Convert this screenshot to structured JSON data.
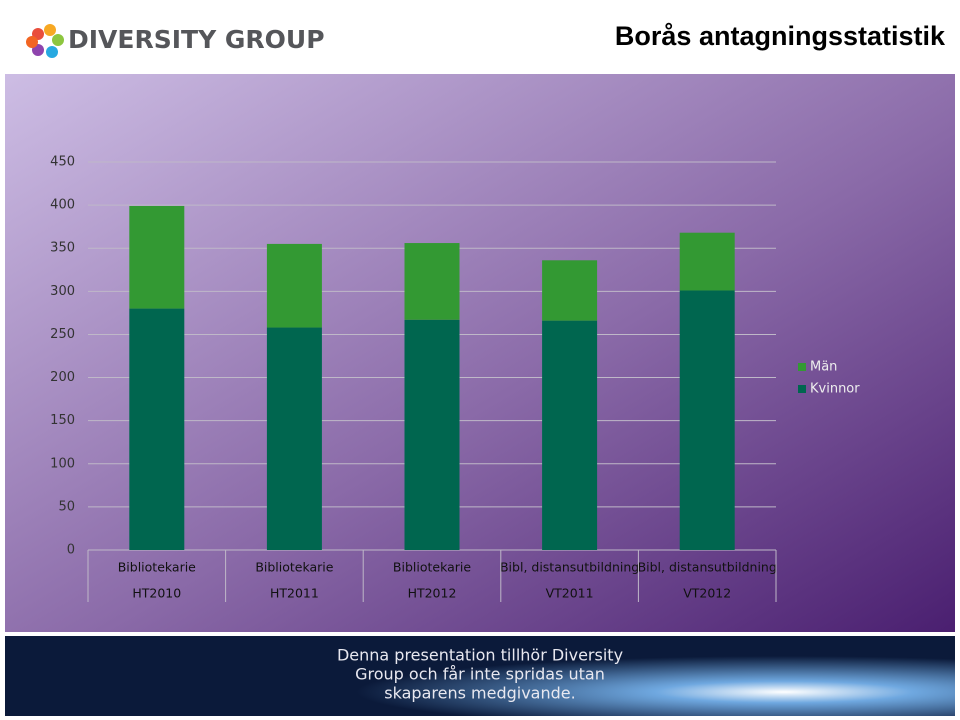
{
  "logo": "DIVERSITY GROUP",
  "footer": [
    "Denna presentation tillhör Diversity",
    "Group och får inte spridas utan",
    "skaparens medgivande."
  ],
  "chart_data": {
    "type": "stacked-bar",
    "title": "Borås antagningsstatistik",
    "categories": [
      "Bibliotekarie",
      "Bibliotekarie",
      "Bibliotekarie",
      "Bibl, distansutbildning",
      "Bibl, distansutbildning"
    ],
    "groups": [
      "HT2010",
      "HT2011",
      "HT2012",
      "VT2011",
      "VT2012"
    ],
    "series": [
      {
        "name": "Kvinnor",
        "color": "#00664f",
        "values": [
          280,
          258,
          267,
          266,
          301
        ]
      },
      {
        "name": "Män",
        "color": "#339933",
        "values": [
          119,
          97,
          89,
          70,
          67
        ]
      }
    ],
    "ylim": [
      0,
      450
    ],
    "yticks": [
      0,
      50,
      100,
      150,
      200,
      250,
      300,
      350,
      400,
      450
    ],
    "grid": true,
    "legend": "right"
  }
}
